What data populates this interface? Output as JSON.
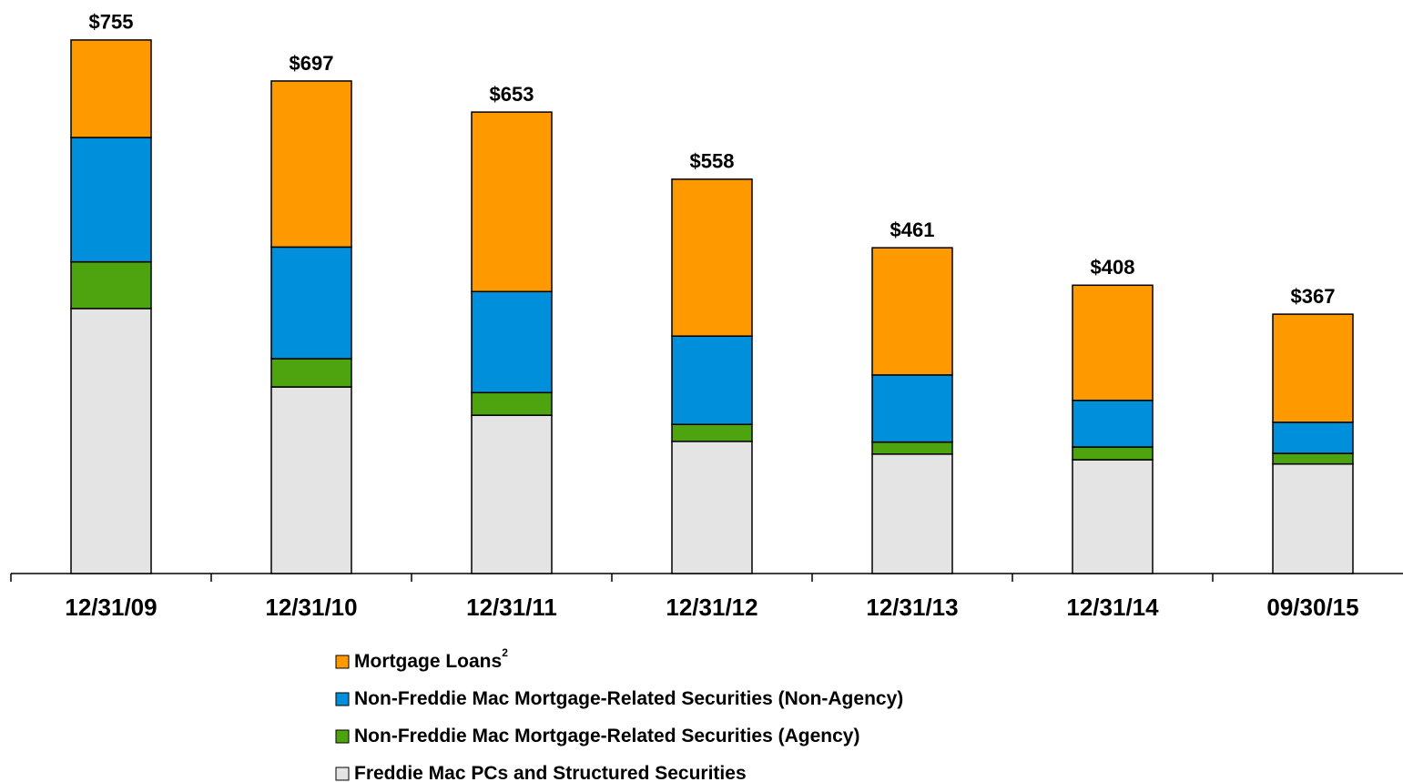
{
  "chart_data": {
    "type": "stacked_bar",
    "categories": [
      "12/31/09",
      "12/31/10",
      "12/31/11",
      "12/31/12",
      "12/31/13",
      "12/31/14",
      "09/30/15"
    ],
    "series": [
      {
        "name": "Mortgage Loans",
        "superscript": "2",
        "color": "#ff9900",
        "values": [
          138,
          235,
          254,
          222,
          180,
          163,
          153
        ]
      },
      {
        "name": "Non-Freddie Mac Mortgage-Related Securities (Non-Agency)",
        "color": "#0090db",
        "values": [
          176,
          158,
          143,
          125,
          95,
          66,
          44
        ]
      },
      {
        "name": "Non-Freddie Mac Mortgage-Related Securities (Agency)",
        "color": "#4ea40e",
        "values": [
          66,
          40,
          32,
          24,
          17,
          18,
          15
        ]
      },
      {
        "name": "Freddie Mac PCs and Structured Securities",
        "color": "#e4e4e4",
        "values": [
          375,
          264,
          224,
          187,
          169,
          161,
          155
        ]
      }
    ],
    "totals": [
      755,
      697,
      653,
      558,
      461,
      408,
      367
    ],
    "total_labels": [
      "$755",
      "$697",
      "$653",
      "$558",
      "$461",
      "$408",
      "$367"
    ],
    "ylim": [
      0,
      800
    ]
  }
}
